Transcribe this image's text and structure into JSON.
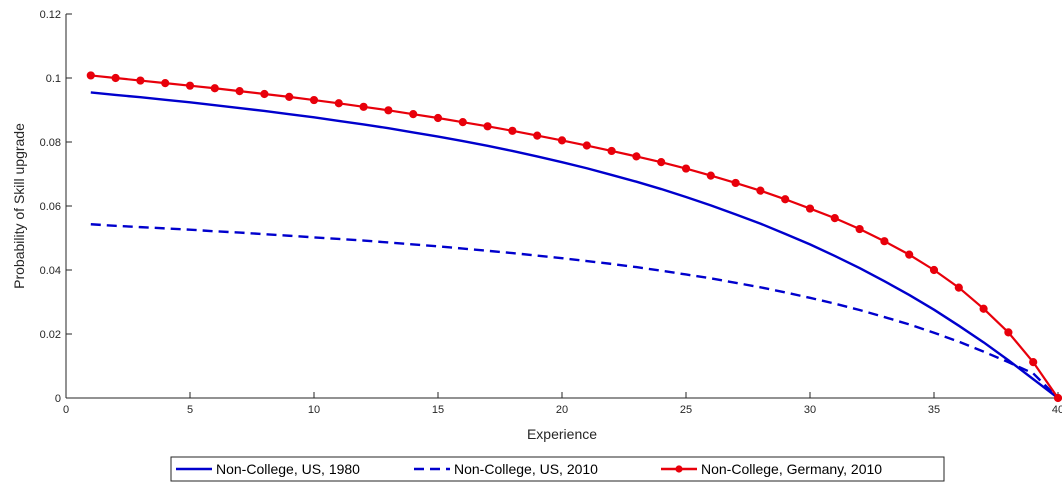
{
  "chart_data": {
    "type": "line",
    "title": "",
    "xlabel": "Experience",
    "ylabel": "Probability of Skill upgrade",
    "xlim": [
      0,
      40
    ],
    "ylim": [
      0,
      0.12
    ],
    "xticks": [
      0,
      5,
      10,
      15,
      20,
      25,
      30,
      35,
      40
    ],
    "yticks": [
      0,
      0.02,
      0.04,
      0.06,
      0.08,
      0.1,
      0.12
    ],
    "xtick_labels": [
      "0",
      "5",
      "10",
      "15",
      "20",
      "25",
      "30",
      "35",
      "40"
    ],
    "ytick_labels": [
      "0",
      "0.02",
      "0.04",
      "0.06",
      "0.08",
      "0.1",
      "0.12"
    ],
    "grid": false,
    "legend_position": "bottom",
    "x": [
      1,
      2,
      3,
      4,
      5,
      6,
      7,
      8,
      9,
      10,
      11,
      12,
      13,
      14,
      15,
      16,
      17,
      18,
      19,
      20,
      21,
      22,
      23,
      24,
      25,
      26,
      27,
      28,
      29,
      30,
      31,
      32,
      33,
      34,
      35,
      36,
      37,
      38,
      39,
      40
    ],
    "series": [
      {
        "name": "Non-College, US, 1980",
        "color": "#0000cd",
        "style": "solid",
        "marker": "none",
        "values": [
          0.0955,
          0.0947,
          0.094,
          0.0932,
          0.0924,
          0.0915,
          0.0906,
          0.0897,
          0.0887,
          0.0877,
          0.0866,
          0.0855,
          0.0843,
          0.083,
          0.0817,
          0.0803,
          0.0788,
          0.0772,
          0.0755,
          0.0737,
          0.0718,
          0.0697,
          0.0676,
          0.0653,
          0.0628,
          0.0602,
          0.0574,
          0.0545,
          0.0513,
          0.048,
          0.0444,
          0.0406,
          0.0365,
          0.0322,
          0.0276,
          0.0226,
          0.0174,
          0.0118,
          0.0059,
          0.0
        ]
      },
      {
        "name": "Non-College, US, 2010",
        "color": "#0000cd",
        "style": "dashed",
        "marker": "none",
        "values": [
          0.0543,
          0.0538,
          0.0534,
          0.053,
          0.0526,
          0.0521,
          0.0517,
          0.0512,
          0.0507,
          0.0502,
          0.0497,
          0.0492,
          0.0486,
          0.048,
          0.0474,
          0.0467,
          0.046,
          0.0453,
          0.0445,
          0.0437,
          0.0428,
          0.0419,
          0.0409,
          0.0398,
          0.0386,
          0.0374,
          0.036,
          0.0346,
          0.033,
          0.0313,
          0.0295,
          0.0275,
          0.0253,
          0.023,
          0.0204,
          0.0176,
          0.0145,
          0.0112,
          0.0077,
          0.0
        ]
      },
      {
        "name": "Non-College, Germany, 2010",
        "color": "#e8000b",
        "style": "solid",
        "marker": "circle",
        "values": [
          0.1008,
          0.1,
          0.0992,
          0.0984,
          0.0976,
          0.0968,
          0.0959,
          0.095,
          0.0941,
          0.0931,
          0.0921,
          0.091,
          0.0899,
          0.0887,
          0.0875,
          0.0862,
          0.0849,
          0.0835,
          0.082,
          0.0805,
          0.0789,
          0.0772,
          0.0755,
          0.0737,
          0.0717,
          0.0695,
          0.0672,
          0.0648,
          0.0621,
          0.0592,
          0.0562,
          0.0528,
          0.049,
          0.0448,
          0.04,
          0.0345,
          0.0279,
          0.0205,
          0.0112,
          0.0
        ]
      }
    ]
  }
}
